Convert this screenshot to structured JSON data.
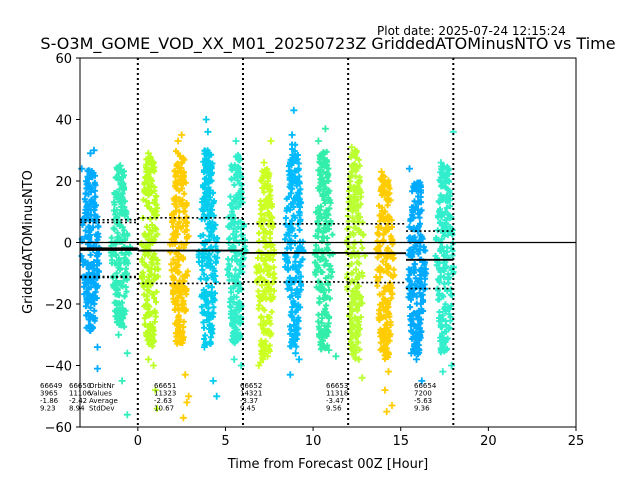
{
  "plot_date": "Plot date: 2025-07-24 12:15:24",
  "chart_data": {
    "type": "scatter",
    "title": "S-O3M_GOME_VOD_XX_M01_20250723Z GriddedATOMinusNTO vs Time",
    "xlabel": "Time from Forecast 00Z [Hour]",
    "ylabel": "GriddedATOMinusNTO",
    "xlim": [
      -3.3,
      25
    ],
    "ylim": [
      -60,
      60
    ],
    "xticks": [
      0,
      5,
      10,
      15,
      20,
      25
    ],
    "yticks": [
      -60,
      -40,
      -20,
      0,
      20,
      40,
      60
    ],
    "grid": false,
    "marker": "plus",
    "zero_line": 0,
    "forecast_boundaries": [
      0,
      6,
      12,
      18
    ],
    "legend_columns": [
      "OrbitNr",
      "Values",
      "Average",
      "StdDev"
    ],
    "orbit_stats": [
      {
        "orbit": "66649",
        "values": "3965",
        "average": "-1.86",
        "stddev": "9.23",
        "x_start": -3.3,
        "x_end": 0,
        "mean": -1.86,
        "std": 9.23
      },
      {
        "orbit": "66650",
        "values": "11106",
        "average": "-2.42",
        "stddev": "8.94",
        "x_start": -3.3,
        "x_end": 0,
        "mean": -2.42,
        "std": 8.94
      },
      {
        "orbit": "66651",
        "values": "11323",
        "average": "-2.63",
        "stddev": "10.67",
        "x_start": 0,
        "x_end": 6,
        "mean": -2.63,
        "std": 10.67
      },
      {
        "orbit": "66652",
        "values": "14321",
        "average": "-3.37",
        "stddev": "9.45",
        "x_start": 6,
        "x_end": 12,
        "mean": -3.37,
        "std": 9.45
      },
      {
        "orbit": "66653",
        "values": "11318",
        "average": "-3.47",
        "stddev": "9.56",
        "x_start": 12,
        "x_end": 15.3,
        "mean": -3.47,
        "std": 9.56
      },
      {
        "orbit": "66654",
        "values": "7200",
        "average": "-5.63",
        "stddev": "9.36",
        "x_start": 15.3,
        "x_end": 18,
        "mean": -5.63,
        "std": 9.36
      }
    ],
    "strips": [
      {
        "x": -2.7,
        "low": -29,
        "high": 24,
        "color": "#00aaff",
        "outliers": [
          [
            -2.7,
            29
          ],
          [
            -2.5,
            30
          ],
          [
            -2.3,
            -34
          ],
          [
            -2.3,
            -41
          ],
          [
            -3.2,
            24
          ],
          [
            -2.8,
            -27
          ]
        ]
      },
      {
        "x": -1.0,
        "low": -28,
        "high": 25,
        "color": "#33eebb",
        "outliers": [
          [
            -1.0,
            25
          ],
          [
            -0.6,
            -36
          ],
          [
            -0.9,
            -45
          ],
          [
            -0.6,
            -56
          ],
          [
            -1.1,
            -30
          ]
        ]
      },
      {
        "x": 0.7,
        "low": -34,
        "high": 28,
        "color": "#bbff22",
        "outliers": [
          [
            0.6,
            29
          ],
          [
            0.9,
            -40
          ],
          [
            1.0,
            -48
          ],
          [
            1.1,
            -54
          ],
          [
            0.6,
            -38
          ]
        ]
      },
      {
        "x": 2.4,
        "low": -33,
        "high": 30,
        "color": "#ffcc00",
        "outliers": [
          [
            2.3,
            33
          ],
          [
            2.5,
            35
          ],
          [
            2.7,
            -43
          ],
          [
            2.8,
            -52
          ],
          [
            2.6,
            -57
          ],
          [
            2.9,
            -50
          ]
        ]
      },
      {
        "x": 4.0,
        "low": -34,
        "high": 30,
        "color": "#00ccee",
        "outliers": [
          [
            3.9,
            40
          ],
          [
            4.0,
            36
          ],
          [
            4.3,
            -45
          ],
          [
            3.8,
            -34
          ],
          [
            4.5,
            -50
          ]
        ]
      },
      {
        "x": 5.6,
        "low": -33,
        "high": 29,
        "color": "#33eecc",
        "outliers": [
          [
            5.6,
            33
          ],
          [
            5.5,
            -38
          ],
          [
            5.9,
            -40
          ]
        ]
      },
      {
        "x": 7.3,
        "low": -38,
        "high": 24,
        "color": "#ccff22",
        "outliers": [
          [
            7.2,
            26
          ],
          [
            7.6,
            33
          ],
          [
            7.0,
            -39
          ],
          [
            7.4,
            -37
          ],
          [
            6.9,
            -40
          ]
        ]
      },
      {
        "x": 8.9,
        "low": -34,
        "high": 32,
        "color": "#00bbff",
        "outliers": [
          [
            8.9,
            43
          ],
          [
            8.7,
            -43
          ],
          [
            9.2,
            -38
          ],
          [
            8.8,
            35
          ],
          [
            9.0,
            -36
          ]
        ]
      },
      {
        "x": 10.6,
        "low": -35,
        "high": 30,
        "color": "#33eeaa",
        "outliers": [
          [
            10.7,
            37
          ],
          [
            10.9,
            -35
          ],
          [
            11.3,
            -37
          ],
          [
            10.3,
            33
          ]
        ]
      },
      {
        "x": 12.4,
        "low": -38,
        "high": 30,
        "color": "#bbff33",
        "outliers": [
          [
            12.2,
            31
          ],
          [
            12.8,
            -44
          ],
          [
            12.6,
            -38
          ]
        ]
      },
      {
        "x": 14.1,
        "low": -38,
        "high": 22,
        "color": "#ffcc00",
        "outliers": [
          [
            13.9,
            23
          ],
          [
            14.3,
            -42
          ],
          [
            14.5,
            -53
          ],
          [
            14.2,
            -55
          ],
          [
            14.1,
            -48
          ]
        ]
      },
      {
        "x": 15.9,
        "low": -37,
        "high": 20,
        "color": "#00aaff",
        "outliers": [
          [
            15.5,
            24
          ],
          [
            15.9,
            -38
          ],
          [
            16.2,
            -45
          ],
          [
            15.6,
            -36
          ]
        ]
      },
      {
        "x": 17.5,
        "low": -36,
        "high": 25,
        "color": "#33eecc",
        "outliers": [
          [
            17.3,
            26
          ],
          [
            17.7,
            24
          ],
          [
            17.4,
            -42
          ],
          [
            17.9,
            -40
          ],
          [
            18.0,
            36
          ]
        ]
      }
    ]
  }
}
